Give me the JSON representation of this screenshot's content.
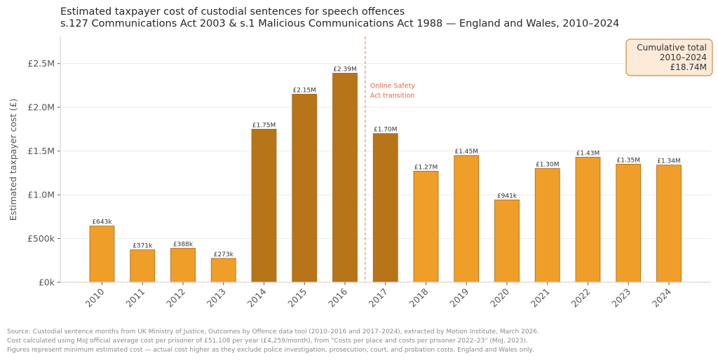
{
  "chart_data": {
    "type": "bar",
    "title": "Estimated taxpayer cost of custodial sentences for speech offences",
    "subtitle": "s.127 Communications Act 2003 & s.1 Malicious Communications Act 1988 — England and Wales, 2010–2024",
    "xlabel": "",
    "ylabel": "Estimated taxpayer cost (£)",
    "ylim": [
      0,
      2810000
    ],
    "yticks": [
      0,
      500000,
      1000000,
      1500000,
      2000000,
      2500000
    ],
    "ytick_labels": [
      "£0k",
      "£500k",
      "£1.0M",
      "£1.5M",
      "£2.0M",
      "£2.5M"
    ],
    "grid": "horizontal",
    "categories": [
      "2010",
      "2011",
      "2012",
      "2013",
      "2014",
      "2015",
      "2016",
      "2017",
      "2018",
      "2019",
      "2020",
      "2021",
      "2022",
      "2023",
      "2024"
    ],
    "values": [
      643000,
      371000,
      388000,
      273000,
      1750000,
      2150000,
      2390000,
      1700000,
      1270000,
      1450000,
      941000,
      1300000,
      1430000,
      1350000,
      1340000
    ],
    "data_labels": [
      "£643k",
      "£371k",
      "£388k",
      "£273k",
      "£1.75M",
      "£2.15M",
      "£2.39M",
      "£1.70M",
      "£1.27M",
      "£1.45M",
      "£941k",
      "£1.30M",
      "£1.43M",
      "£1.35M",
      "£1.34M"
    ],
    "highlighted": [
      false,
      false,
      false,
      false,
      true,
      true,
      true,
      true,
      false,
      false,
      false,
      false,
      false,
      false,
      false
    ],
    "colors": {
      "bar": "#EF9E29",
      "bar_highlight": "#B87418",
      "bar_edge": "#A8661A",
      "annotation_line": "#E8886A",
      "annotation_text": "#E06A4A",
      "box_fill": "#FBEBD8",
      "box_edge": "#D08A3C",
      "grid": "#EBEBEB",
      "axis": "#D9D5CF"
    },
    "annotation": {
      "text_lines": [
        "Online Safety",
        "Act transition"
      ],
      "between_categories": [
        "2016",
        "2017"
      ],
      "style": "dashed vertical line"
    },
    "summary_box": {
      "lines": [
        "Cumulative total",
        "2010–2024",
        "£18.74M"
      ],
      "placement": "top-right"
    },
    "source_notes": [
      "Source: Custodial sentence months from UK Ministry of Justice, Outcomes by Offence data tool (2010–2016 and 2017–2024), extracted by Motion Institute, March 2026.",
      "Cost calculated using MoJ official average cost per prisoner of £51,108 per year (£4,259/month), from \"Costs per place and costs per prisoner 2022–23\" (MoJ, 2023).",
      "Figures represent minimum estimated cost — actual cost higher as they exclude police investigation, prosecution, court, and probation costs. England and Wales only."
    ]
  }
}
